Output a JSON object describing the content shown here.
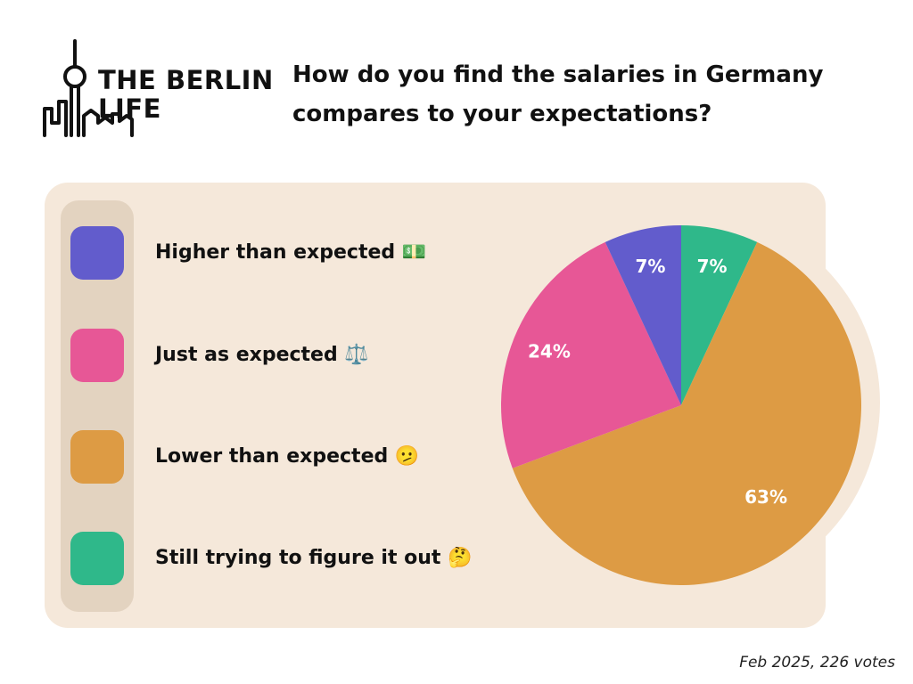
{
  "brand": {
    "logo_text": "THE BERLIN\nLIFE"
  },
  "headline": "How do you find the salaries in Germany compares to your expectations?",
  "chart_data": {
    "type": "pie",
    "categories": [
      "Higher than expected",
      "Just as expected",
      "Lower than expected",
      "Still trying to figure it out"
    ],
    "legend_labels": [
      "Higher than expected 💵",
      "Just as expected ⚖️",
      "Lower than expected 🫤",
      "Still trying to figure it out 🤔"
    ],
    "values": [
      7,
      24,
      63,
      7
    ],
    "value_labels": [
      "7%",
      "24%",
      "63%",
      "7%"
    ],
    "colors": [
      "#625ccc",
      "#e75796",
      "#dd9b44",
      "#2fb88a"
    ],
    "label_order_clockwise": [
      "Still trying to figure it out",
      "Lower than expected",
      "Just as expected",
      "Higher than expected"
    ],
    "legend_placement": "left"
  },
  "footer": "Feb 2025, 226 votes"
}
